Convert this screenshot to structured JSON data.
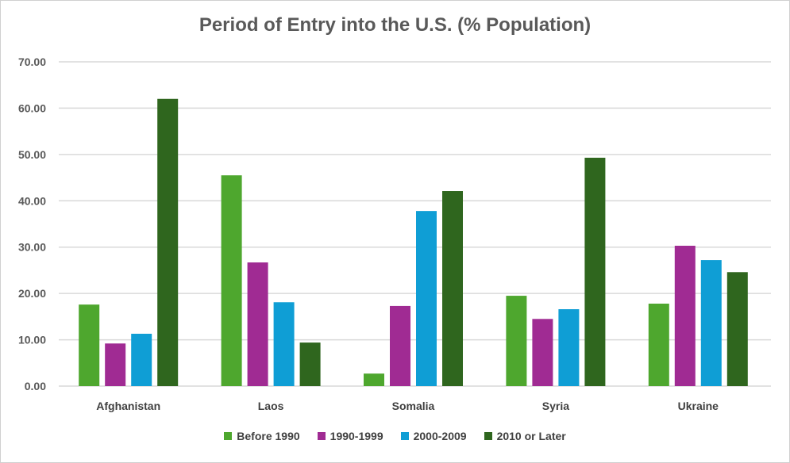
{
  "chart_data": {
    "type": "bar",
    "title": "Period of Entry into the U.S. (% Population)",
    "xlabel": "",
    "ylabel": "",
    "ylim": [
      0,
      70
    ],
    "yticks": [
      "0.00",
      "10.00",
      "20.00",
      "30.00",
      "40.00",
      "50.00",
      "60.00",
      "70.00"
    ],
    "grid": true,
    "legend_position": "bottom",
    "categories": [
      "Afghanistan",
      "Laos",
      "Somalia",
      "Syria",
      "Ukraine"
    ],
    "series": [
      {
        "name": "Before 1990",
        "color": "#4EA72E",
        "values": [
          17.6,
          45.5,
          2.7,
          19.5,
          17.8
        ]
      },
      {
        "name": "1990-1999",
        "color": "#A02B93",
        "values": [
          9.2,
          26.7,
          17.3,
          14.5,
          30.3
        ]
      },
      {
        "name": "2000-2009",
        "color": "#0F9ED5",
        "values": [
          11.3,
          18.1,
          37.8,
          16.6,
          27.2
        ]
      },
      {
        "name": "2010 or Later",
        "color": "#2F661E",
        "values": [
          62.0,
          9.4,
          42.1,
          49.3,
          24.6
        ]
      }
    ]
  }
}
